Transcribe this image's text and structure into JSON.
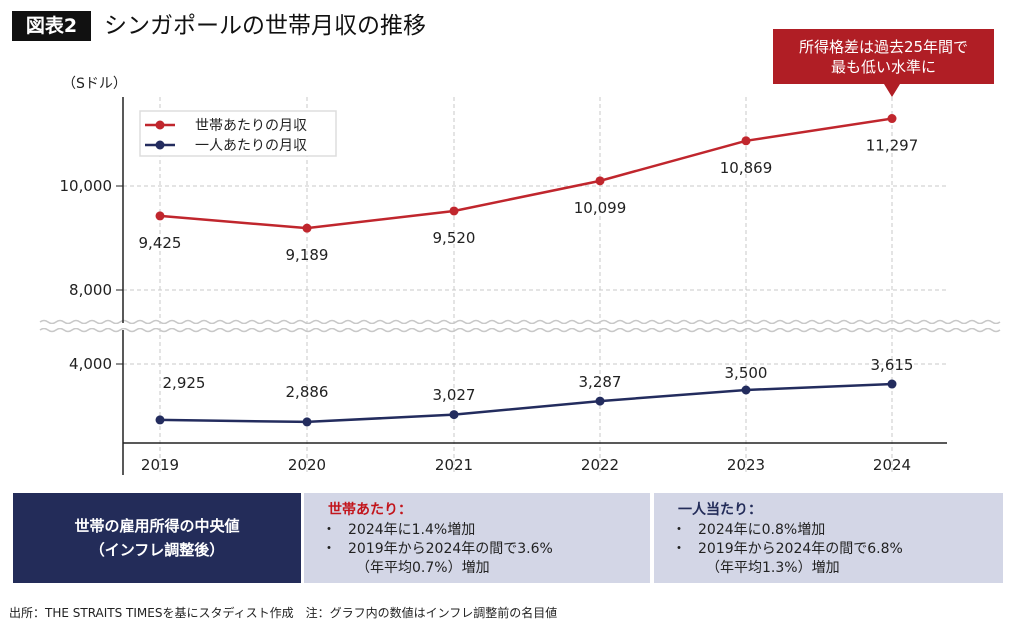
{
  "header": {
    "tag": "図表2",
    "title": "シンガポールの世帯月収の推移"
  },
  "callout": {
    "line1": "所得格差は過去25年間で",
    "line2": "最も低い水準に"
  },
  "chart_data": {
    "type": "line",
    "ylabel": "（Sドル）",
    "categories": [
      "2019",
      "2020",
      "2021",
      "2022",
      "2023",
      "2024"
    ],
    "y_ticks": [
      "10,000",
      "8,000",
      "4,000"
    ],
    "axis_break": true,
    "grid": true,
    "legend_position": "top-left",
    "series": [
      {
        "name": "世帯あたりの月収",
        "color": "#c0262d",
        "values": [
          9425,
          9189,
          9520,
          10099,
          10869,
          11297
        ],
        "labels": [
          "9,425",
          "9,189",
          "9,520",
          "10,099",
          "10,869",
          "11,297"
        ]
      },
      {
        "name": "一人あたりの月収",
        "color": "#232c5e",
        "values": [
          2925,
          2886,
          3027,
          3287,
          3500,
          3615
        ],
        "labels": [
          "2,925",
          "2,886",
          "3,027",
          "3,287",
          "3,500",
          "3,615"
        ]
      }
    ]
  },
  "summary": {
    "main_line1": "世帯の雇用所得の中央値",
    "main_line2": "（インフレ調整後）",
    "household": {
      "heading": "世帯あたり：",
      "item1": "2024年に1.4%増加",
      "item2": "2019年から2024年の間で3.6%",
      "item2_sub": "（年平均0.7%）増加"
    },
    "per_person": {
      "heading": "一人当たり：",
      "item1": "2024年に0.8%増加",
      "item2": "2019年から2024年の間で6.8%",
      "item2_sub": "（年平均1.3%）増加"
    }
  },
  "footer": "出所：THE STRAITS TIMESを基にスタディスト作成　注：グラフ内の数値はインフレ調整前の名目値"
}
